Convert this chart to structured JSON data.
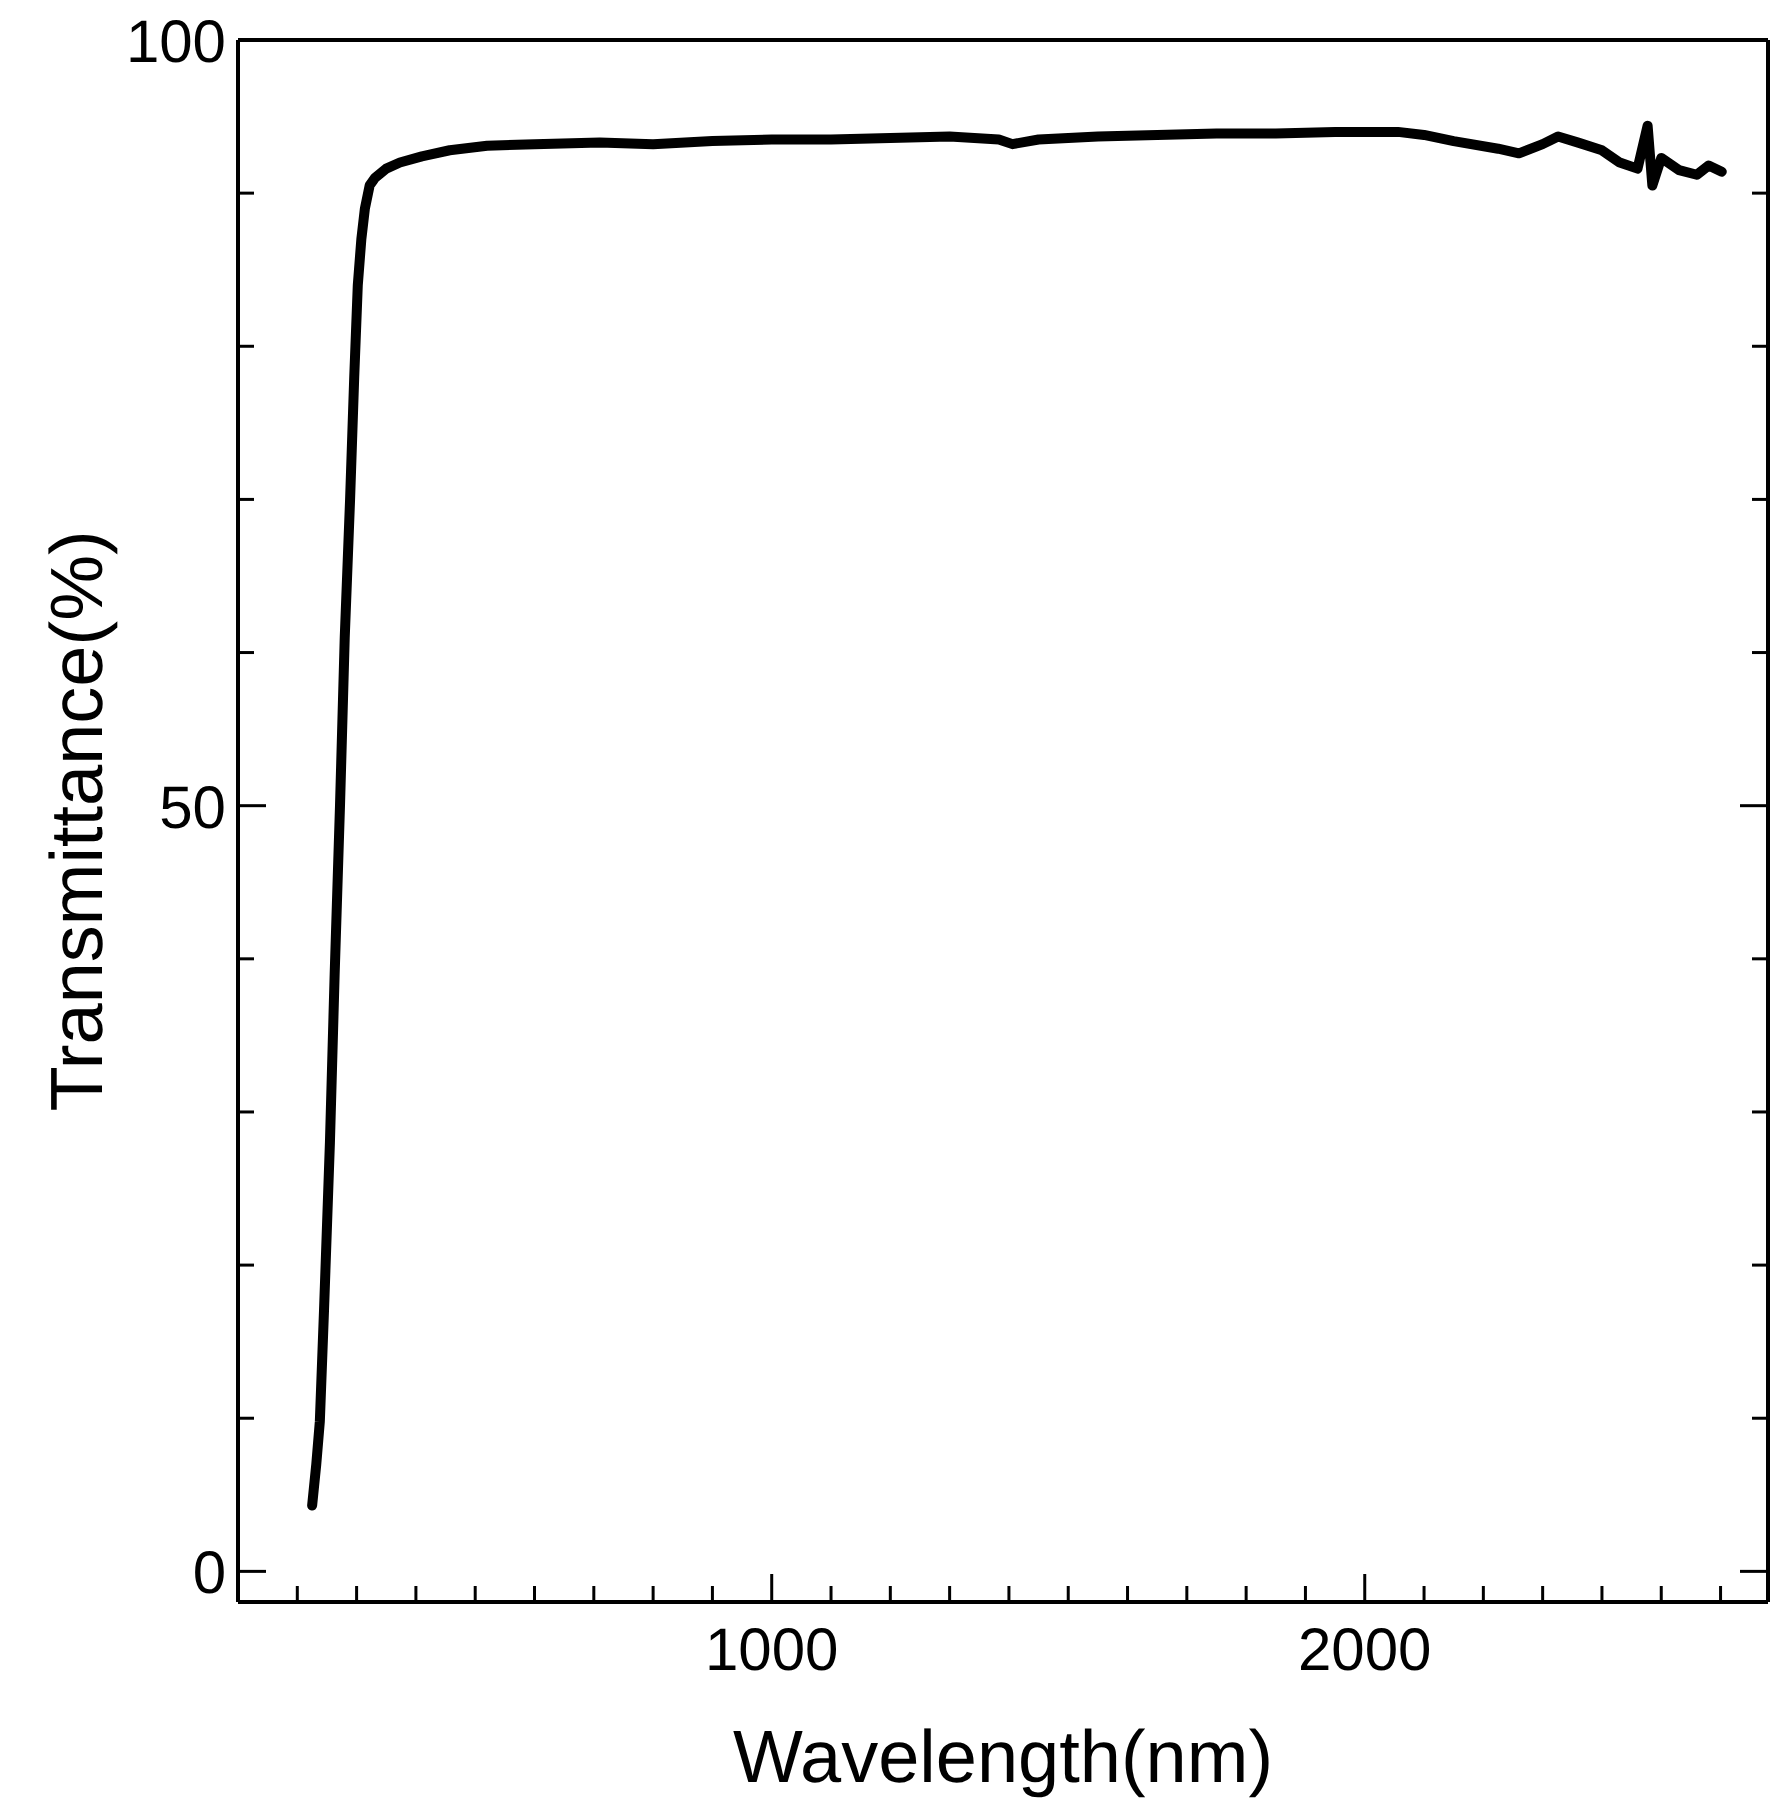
{
  "chart_data": {
    "type": "line",
    "xlabel": "Wavelength(nm)",
    "ylabel": "Transmittance(%)",
    "xlim": [
      100,
      2680
    ],
    "ylim": [
      -2,
      100
    ],
    "xticks": [
      {
        "value": 100,
        "label": null
      },
      {
        "value": 200,
        "label": null
      },
      {
        "value": 300,
        "label": null
      },
      {
        "value": 400,
        "label": null
      },
      {
        "value": 500,
        "label": null
      },
      {
        "value": 600,
        "label": null
      },
      {
        "value": 700,
        "label": null
      },
      {
        "value": 800,
        "label": null
      },
      {
        "value": 900,
        "label": null
      },
      1000,
      {
        "value": 1100,
        "label": null
      },
      {
        "value": 1200,
        "label": null
      },
      {
        "value": 1300,
        "label": null
      },
      {
        "value": 1400,
        "label": null
      },
      {
        "value": 1500,
        "label": null
      },
      {
        "value": 1600,
        "label": null
      },
      {
        "value": 1700,
        "label": null
      },
      {
        "value": 1800,
        "label": null
      },
      {
        "value": 1900,
        "label": null
      },
      2000,
      {
        "value": 2100,
        "label": null
      },
      {
        "value": 2200,
        "label": null
      },
      {
        "value": 2300,
        "label": null
      },
      {
        "value": 2400,
        "label": null
      },
      {
        "value": 2500,
        "label": null
      },
      {
        "value": 2600,
        "label": null
      }
    ],
    "yticks": [
      0,
      {
        "value": 10,
        "label": null
      },
      {
        "value": 20,
        "label": null
      },
      {
        "value": 30,
        "label": null
      },
      {
        "value": 40,
        "label": null
      },
      50,
      {
        "value": 60,
        "label": null
      },
      {
        "value": 70,
        "label": null
      },
      {
        "value": 80,
        "label": null
      },
      {
        "value": 90,
        "label": null
      },
      100
    ],
    "marker": "none",
    "line_style": "solid",
    "series": [
      {
        "color": "#000000",
        "x": [
          225,
          232,
          238,
          245,
          255,
          263,
          272,
          280,
          289,
          296,
          302,
          308,
          314,
          322,
          331,
          350,
          373,
          410,
          457,
          520,
          600,
          710,
          800,
          900,
          1000,
          1100,
          1200,
          1300,
          1383,
          1406,
          1450,
          1550,
          1650,
          1750,
          1850,
          1950,
          2056,
          2100,
          2150,
          2225,
          2260,
          2300,
          2326,
          2360,
          2400,
          2430,
          2460,
          2477,
          2485,
          2500,
          2530,
          2560,
          2580,
          2602
        ],
        "values": [
          4.3,
          7,
          9.8,
          17,
          28,
          39,
          50,
          61,
          70,
          78,
          84,
          87,
          89,
          90.5,
          91,
          91.6,
          92,
          92.4,
          92.8,
          93.1,
          93.2,
          93.3,
          93.2,
          93.4,
          93.5,
          93.5,
          93.6,
          93.7,
          93.5,
          93.2,
          93.5,
          93.7,
          93.8,
          93.9,
          93.9,
          94,
          94,
          93.8,
          93.4,
          92.9,
          92.6,
          93.2,
          93.7,
          93.3,
          92.8,
          92,
          91.6,
          94.4,
          90.5,
          92.3,
          91.5,
          91.2,
          91.8,
          91.4
        ]
      }
    ]
  }
}
